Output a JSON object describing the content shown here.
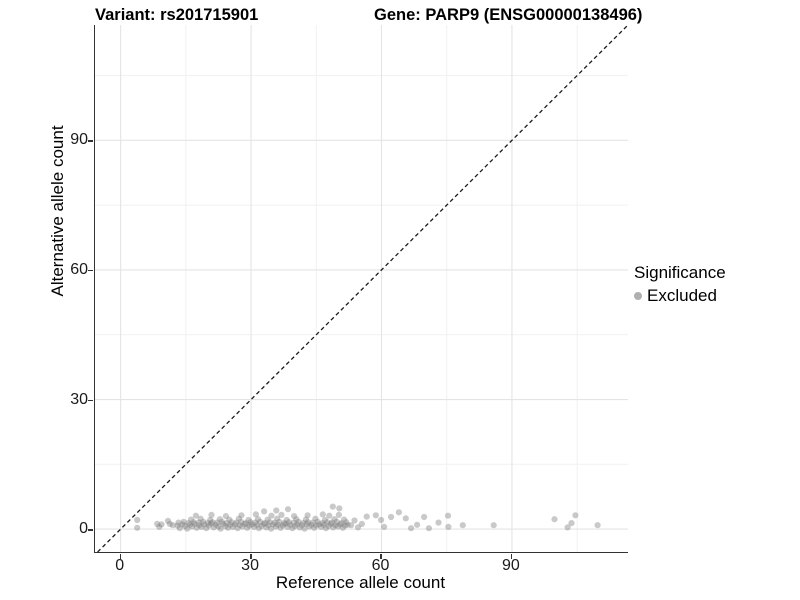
{
  "colors": {
    "point": "#7f7f7f",
    "legend_key": "#b0b0b0",
    "grid_major": "#e4e4e4",
    "grid_minor": "#f1f1f1",
    "axis_line": "#333333",
    "identity_line": "#1a1a1a"
  },
  "chart_data": {
    "type": "scatter",
    "title_left": "Variant: rs201715901",
    "title_right": "Gene: PARP9 (ENSG00000138496)",
    "xlabel": "Reference allele count",
    "ylabel": "Alternative allele count",
    "xlim": [
      -5.9,
      116.7
    ],
    "ylim": [
      -5.3,
      116.7
    ],
    "x_ticks": [
      0,
      30,
      60,
      90
    ],
    "y_ticks": [
      0,
      30,
      60,
      90
    ],
    "x_minor_breaks": [
      15,
      45,
      75,
      105
    ],
    "y_minor_breaks": [
      15,
      45,
      75,
      105
    ],
    "grid": "major+minor",
    "identity_line": {
      "slope": 1,
      "intercept": 0,
      "style": "dashed"
    },
    "legend": {
      "title": "Significance",
      "position": "right",
      "items": [
        {
          "label": "Excluded",
          "color": "#b0b0b0"
        }
      ]
    },
    "series": [
      {
        "name": "Excluded",
        "color": "#7f7f7f",
        "opacity": 0.42,
        "radius": 3.1,
        "points": [
          [
            3.8,
            0.3
          ],
          [
            3.8,
            2.1
          ],
          [
            8.4,
            1.2
          ],
          [
            8.9,
            0.5
          ],
          [
            9.4,
            1.1
          ],
          [
            10.9,
            1.9
          ],
          [
            11.3,
            1.2
          ],
          [
            12.0,
            0.9
          ],
          [
            13.1,
            0.8
          ],
          [
            13.6,
            0.2
          ],
          [
            14.2,
            1.1
          ],
          [
            14.8,
            0.7
          ],
          [
            15.3,
            0.1
          ],
          [
            15.9,
            1.0
          ],
          [
            16.4,
            0.6
          ],
          [
            17.0,
            1.2
          ],
          [
            17.5,
            0.3
          ],
          [
            18.1,
            0.9
          ],
          [
            18.6,
            0.5
          ],
          [
            19.2,
            1.1
          ],
          [
            19.7,
            0.2
          ],
          [
            20.3,
            0.8
          ],
          [
            20.8,
            1.3
          ],
          [
            21.4,
            0.4
          ],
          [
            21.9,
            1.0
          ],
          [
            22.5,
            0.6
          ],
          [
            23.0,
            0.1
          ],
          [
            23.6,
            1.2
          ],
          [
            24.1,
            0.7
          ],
          [
            24.7,
            0.3
          ],
          [
            25.2,
            1.0
          ],
          [
            25.8,
            0.5
          ],
          [
            26.3,
            1.1
          ],
          [
            26.9,
            0.2
          ],
          [
            27.4,
            0.9
          ],
          [
            28.0,
            0.6
          ],
          [
            28.5,
            1.2
          ],
          [
            29.1,
            0.3
          ],
          [
            29.6,
            0.8
          ],
          [
            30.2,
            1.1
          ],
          [
            30.7,
            0.5
          ],
          [
            31.3,
            1.0
          ],
          [
            31.8,
            0.2
          ],
          [
            32.4,
            0.7
          ],
          [
            32.9,
            1.2
          ],
          [
            33.5,
            0.4
          ],
          [
            34.0,
            0.9
          ],
          [
            34.6,
            0.1
          ],
          [
            35.1,
            1.1
          ],
          [
            35.7,
            0.6
          ],
          [
            36.2,
            1.0
          ],
          [
            36.8,
            0.3
          ],
          [
            37.3,
            0.8
          ],
          [
            37.9,
            1.2
          ],
          [
            38.4,
            0.5
          ],
          [
            39.0,
            1.0
          ],
          [
            39.5,
            0.2
          ],
          [
            40.1,
            0.7
          ],
          [
            40.6,
            1.1
          ],
          [
            41.2,
            0.4
          ],
          [
            41.7,
            0.9
          ],
          [
            42.3,
            0.1
          ],
          [
            42.8,
            1.2
          ],
          [
            43.4,
            0.6
          ],
          [
            43.9,
            1.0
          ],
          [
            44.5,
            0.3
          ],
          [
            45.0,
            0.8
          ],
          [
            45.6,
            1.1
          ],
          [
            46.1,
            0.5
          ],
          [
            46.7,
            1.0
          ],
          [
            47.2,
            0.2
          ],
          [
            47.8,
            0.7
          ],
          [
            48.3,
            1.2
          ],
          [
            48.9,
            0.4
          ],
          [
            49.4,
            0.9
          ],
          [
            50.0,
            0.6
          ],
          [
            50.5,
            1.1
          ],
          [
            51.1,
            0.3
          ],
          [
            51.6,
            0.8
          ],
          [
            52.2,
            1.0
          ],
          [
            13.3,
            1.5
          ],
          [
            14.5,
            1.7
          ],
          [
            15.6,
            1.4
          ],
          [
            16.8,
            1.6
          ],
          [
            18.0,
            1.5
          ],
          [
            19.0,
            1.7
          ],
          [
            20.1,
            1.4
          ],
          [
            21.1,
            1.6
          ],
          [
            22.2,
            1.5
          ],
          [
            23.3,
            1.7
          ],
          [
            24.4,
            1.4
          ],
          [
            25.5,
            1.6
          ],
          [
            26.6,
            1.5
          ],
          [
            27.7,
            1.7
          ],
          [
            28.8,
            1.4
          ],
          [
            29.9,
            1.6
          ],
          [
            31.0,
            1.5
          ],
          [
            32.1,
            1.7
          ],
          [
            33.2,
            1.4
          ],
          [
            34.3,
            1.6
          ],
          [
            35.4,
            1.5
          ],
          [
            36.5,
            1.7
          ],
          [
            37.6,
            1.4
          ],
          [
            38.7,
            1.6
          ],
          [
            39.8,
            1.5
          ],
          [
            40.9,
            1.7
          ],
          [
            42.0,
            1.4
          ],
          [
            43.1,
            1.6
          ],
          [
            44.2,
            1.5
          ],
          [
            45.3,
            1.7
          ],
          [
            46.4,
            1.4
          ],
          [
            47.5,
            1.6
          ],
          [
            48.6,
            1.5
          ],
          [
            49.7,
            1.7
          ],
          [
            50.8,
            1.4
          ],
          [
            51.9,
            1.6
          ],
          [
            16.2,
            2.2
          ],
          [
            18.4,
            2.4
          ],
          [
            20.6,
            2.1
          ],
          [
            22.8,
            2.3
          ],
          [
            25.0,
            2.2
          ],
          [
            27.2,
            2.4
          ],
          [
            29.4,
            2.1
          ],
          [
            31.6,
            2.3
          ],
          [
            33.8,
            2.2
          ],
          [
            36.0,
            2.4
          ],
          [
            38.2,
            2.1
          ],
          [
            40.4,
            2.3
          ],
          [
            42.6,
            2.2
          ],
          [
            44.8,
            2.4
          ],
          [
            47.0,
            2.1
          ],
          [
            49.2,
            2.3
          ],
          [
            51.4,
            2.2
          ],
          [
            17.3,
            3.1
          ],
          [
            20.9,
            3.3
          ],
          [
            24.2,
            3.0
          ],
          [
            27.8,
            3.2
          ],
          [
            31.1,
            3.4
          ],
          [
            34.7,
            3.1
          ],
          [
            37.0,
            3.3
          ],
          [
            39.9,
            3.0
          ],
          [
            43.0,
            3.2
          ],
          [
            46.5,
            3.4
          ],
          [
            48.0,
            3.1
          ],
          [
            50.2,
            3.3
          ],
          [
            33.0,
            4.1
          ],
          [
            35.8,
            4.3
          ],
          [
            38.5,
            4.6
          ],
          [
            48.8,
            5.2
          ],
          [
            50.3,
            4.8
          ],
          [
            53.0,
            0.9
          ],
          [
            53.8,
            2.0
          ],
          [
            54.6,
            0.4
          ],
          [
            55.5,
            1.2
          ],
          [
            56.6,
            2.9
          ],
          [
            58.7,
            3.2
          ],
          [
            59.9,
            2.1
          ],
          [
            60.6,
            0.5
          ],
          [
            62.2,
            2.8
          ],
          [
            64.0,
            3.9
          ],
          [
            65.6,
            2.5
          ],
          [
            66.8,
            0.2
          ],
          [
            68.2,
            1.0
          ],
          [
            69.8,
            2.8
          ],
          [
            70.9,
            0.2
          ],
          [
            73.1,
            1.5
          ],
          [
            75.3,
            3.1
          ],
          [
            75.4,
            0.5
          ],
          [
            78.7,
            0.9
          ],
          [
            85.8,
            0.9
          ],
          [
            99.8,
            2.3
          ],
          [
            102.8,
            0.4
          ],
          [
            103.7,
            1.4
          ],
          [
            104.6,
            3.2
          ],
          [
            109.7,
            0.9
          ]
        ]
      }
    ]
  }
}
